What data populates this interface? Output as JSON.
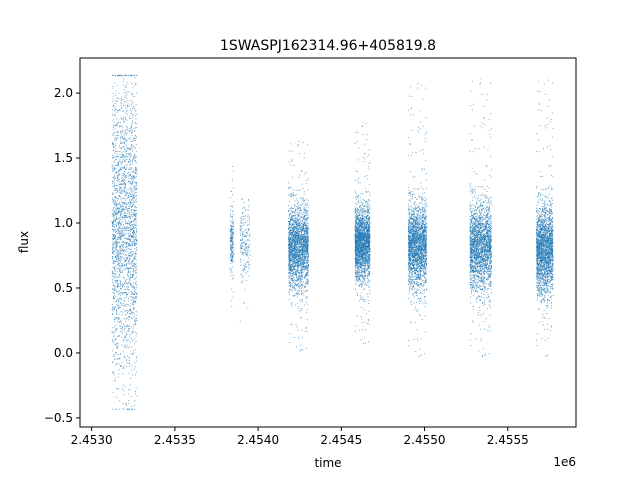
{
  "chart_data": {
    "type": "scatter",
    "title": "1SWASPJ162314.96+405819.8",
    "xlabel": "time",
    "ylabel": "flux",
    "x_offset_label": "1e6",
    "xlim": [
      2.45293,
      2.45591
    ],
    "ylim": [
      -0.57,
      2.27
    ],
    "x_ticks": [
      2.453,
      2.4535,
      2.454,
      2.4545,
      2.455,
      2.4555
    ],
    "x_tick_labels": [
      "2.4530",
      "2.4535",
      "2.4540",
      "2.4545",
      "2.4550",
      "2.4555"
    ],
    "y_ticks": [
      -0.5,
      0.0,
      0.5,
      1.0,
      1.5,
      2.0
    ],
    "y_tick_labels": [
      "−0.5",
      "0.0",
      "0.5",
      "1.0",
      "1.5",
      "2.0"
    ],
    "grid": false,
    "marker_color": "#1f77b4",
    "series": [
      {
        "clusters": [
          {
            "x_range": [
              2.45312,
              2.45327
            ],
            "flux_median": 0.95,
            "flux_spread": 0.55,
            "flux_range": [
              -0.43,
              2.14
            ],
            "density": "high"
          },
          {
            "x_range": [
              2.45383,
              2.45385
            ],
            "flux_median": 0.85,
            "flux_spread": 0.12,
            "flux_range": [
              0.1,
              1.6
            ],
            "density": "low"
          },
          {
            "x_range": [
              2.45389,
              2.45395
            ],
            "flux_median": 0.85,
            "flux_spread": 0.15,
            "flux_range": [
              0.15,
              1.55
            ],
            "density": "low"
          },
          {
            "x_range": [
              2.45418,
              2.4543
            ],
            "flux_median": 0.82,
            "flux_spread": 0.16,
            "flux_range": [
              0.0,
              1.65
            ],
            "density": "high"
          },
          {
            "x_range": [
              2.45458,
              2.45467
            ],
            "flux_median": 0.85,
            "flux_spread": 0.14,
            "flux_range": [
              0.05,
              1.8
            ],
            "density": "high"
          },
          {
            "x_range": [
              2.4549,
              2.45501
            ],
            "flux_median": 0.83,
            "flux_spread": 0.16,
            "flux_range": [
              -0.05,
              2.1
            ],
            "density": "high"
          },
          {
            "x_range": [
              2.45527,
              2.4554
            ],
            "flux_median": 0.82,
            "flux_spread": 0.17,
            "flux_range": [
              -0.05,
              2.14
            ],
            "density": "high"
          },
          {
            "x_range": [
              2.45567,
              2.45577
            ],
            "flux_median": 0.8,
            "flux_spread": 0.17,
            "flux_range": [
              -0.05,
              2.14
            ],
            "density": "high"
          }
        ]
      }
    ]
  }
}
